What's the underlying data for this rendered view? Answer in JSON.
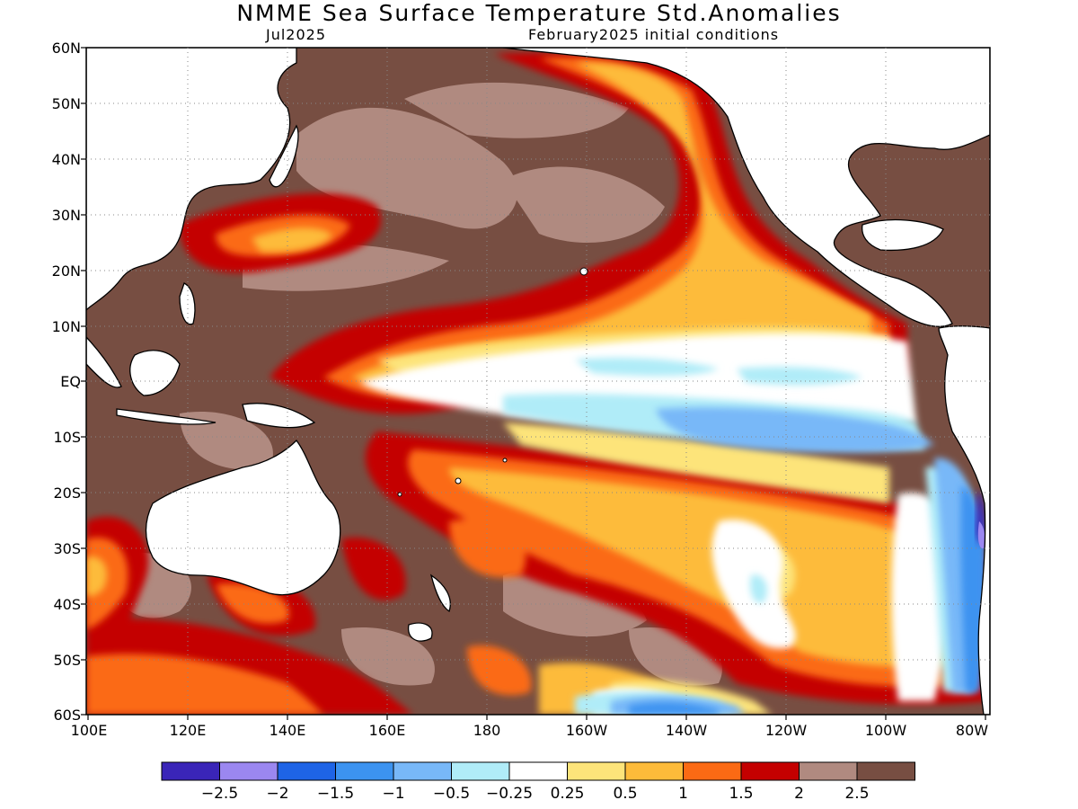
{
  "title": "NMME Sea Surface Temperature Std.Anomalies",
  "subtitle_left": "Jul2025",
  "subtitle_right": "February2025 initial conditions",
  "lat_labels": [
    "60N",
    "50N",
    "40N",
    "30N",
    "20N",
    "10N",
    "EQ",
    "10S",
    "20S",
    "30S",
    "40S",
    "50S",
    "60S"
  ],
  "lon_labels": [
    "100E",
    "120E",
    "140E",
    "160E",
    "180",
    "160W",
    "140W",
    "120W",
    "100W",
    "80W"
  ],
  "colorbar": {
    "colors": [
      "#3a25b8",
      "#9b87f0",
      "#1e64e6",
      "#3c93f0",
      "#78b8f8",
      "#b0ecf8",
      "#ffffff",
      "#fde47a",
      "#fdbb3a",
      "#fb6a14",
      "#c40000",
      "#b08a80",
      "#774e42"
    ],
    "labels": [
      "−2.5",
      "−2",
      "−1.5",
      "−1",
      "−0.5",
      "−0.25",
      "0.25",
      "0.5",
      "1",
      "1.5",
      "2",
      "2.5"
    ]
  }
}
